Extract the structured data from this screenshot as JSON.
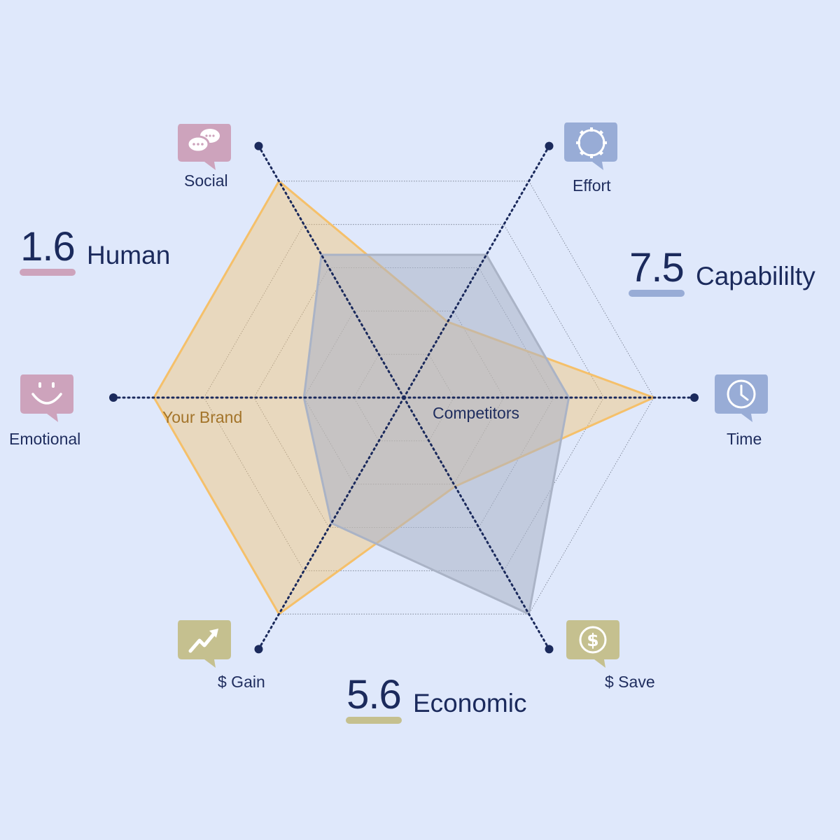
{
  "chart_data": {
    "type": "radar",
    "axes": [
      "Social",
      "Effort",
      "Time",
      "$ Save",
      "$ Gain",
      "Emotional"
    ],
    "range": [
      0,
      5
    ],
    "rings": 5,
    "series": [
      {
        "name": "Your Brand",
        "values": [
          5,
          1.75,
          5,
          2.05,
          5,
          5
        ],
        "color": "#f5c06a"
      },
      {
        "name": "Competitors",
        "values": [
          3.3,
          3.3,
          3.3,
          5,
          2.9,
          2
        ],
        "color": "#aab3c6"
      }
    ]
  },
  "axis_icons": [
    {
      "axis": "Social",
      "icon": "chat-bubbles-icon",
      "color": "#cda3bc"
    },
    {
      "axis": "Effort",
      "icon": "gear-icon",
      "color": "#98acd6"
    },
    {
      "axis": "Time",
      "icon": "clock-icon",
      "color": "#98acd6"
    },
    {
      "axis": "$ Save",
      "icon": "dollar-coin-icon",
      "color": "#c5c08f"
    },
    {
      "axis": "$ Gain",
      "icon": "trend-up-arrow-icon",
      "color": "#c5c08f"
    },
    {
      "axis": "Emotional",
      "icon": "smiley-icon",
      "color": "#cda3bc"
    }
  ],
  "scores": {
    "human": {
      "value": "1.6",
      "label": "Human",
      "color": "#cda3bc"
    },
    "capability": {
      "value": "7.5",
      "label": "Capabililty",
      "color": "#98acd6"
    },
    "economic": {
      "value": "5.6",
      "label": "Economic",
      "color": "#c5c08f"
    }
  },
  "colors": {
    "background": "#dfe8fb",
    "axis_line": "#1b2a5c",
    "brand_label": "#a3742a",
    "competitor_label": "#1f2d5e"
  }
}
